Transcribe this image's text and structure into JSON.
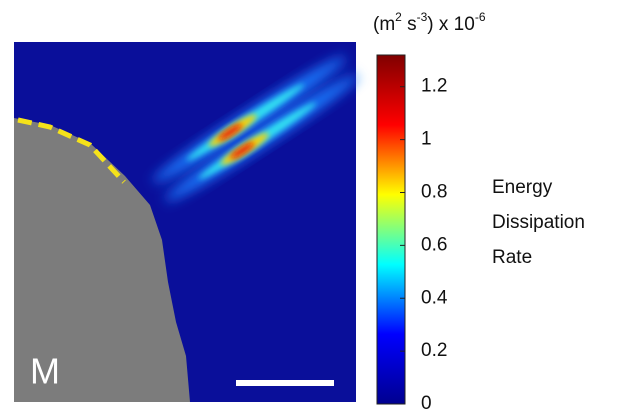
{
  "chart_data": {
    "type": "heatmap",
    "panel_label": "M",
    "colorbar_label_parts": [
      "(m",
      "2",
      " s",
      "-3",
      ") x 10",
      "-6"
    ],
    "colorbar_title": [
      "Energy",
      "Dissipation",
      "Rate"
    ],
    "colormap": [
      "#00008f",
      "#0000ff",
      "#00ffff",
      "#ffff00",
      "#ff0000",
      "#800000"
    ],
    "clim": [
      0,
      1.32
    ],
    "cticks": [
      0,
      0.2,
      0.4,
      0.6,
      0.8,
      1,
      1.2
    ]
  }
}
